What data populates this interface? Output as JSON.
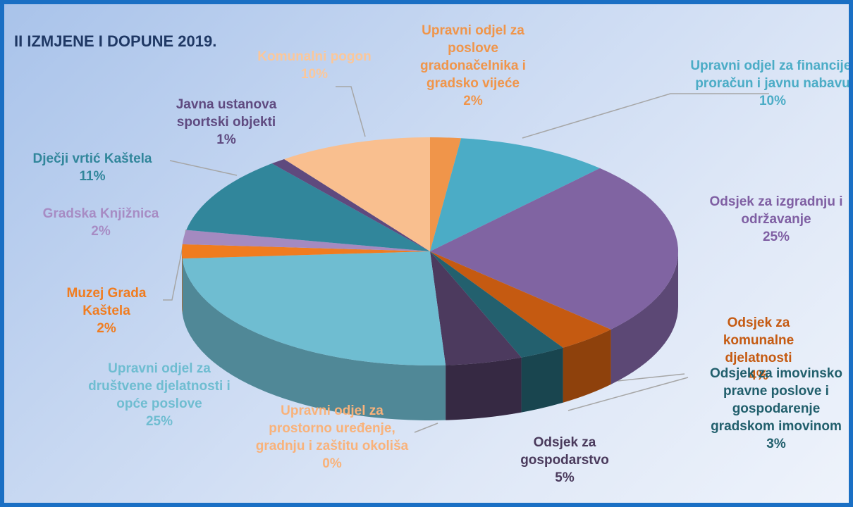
{
  "chart_data": {
    "type": "pie",
    "title": "II IZMJENE I DOPUNE 2019.",
    "categories": [
      "Upravni odjel za poslove gradonačelnika i gradsko vijeće",
      "Upravni odjel za financije, proračun i javnu nabavu",
      "Odsjek za izgradnju i održavanje",
      "Odsjek za komunalne djelatnosti",
      "Odsjek za imovinsko pravne poslove i gospodarenje gradskom imovinom",
      "Odsjek za gospodarstvo",
      "Upravni odjel za prostorno uređenje, gradnju i zaštitu okoliša",
      "Upravni odjel za društvene djelatnosti i opće poslove",
      "Muzej Grada Kaštela",
      "Gradska Knjižnica",
      "Dječji vrtić Kaštela",
      "Javna ustanova sportski objekti",
      "Komunalni pogon"
    ],
    "values": [
      2,
      10,
      25,
      4,
      3,
      5,
      0,
      25,
      2,
      2,
      11,
      1,
      10
    ],
    "value_labels": [
      "2%",
      "10%",
      "25%",
      "4%",
      "3%",
      "5%",
      "0%",
      "25%",
      "2%",
      "2%",
      "11%",
      "1%",
      "10%"
    ],
    "colors": [
      "#f0954a",
      "#4bacc6",
      "#8064a2",
      "#c55a11",
      "#23606e",
      "#4c3a5e",
      "#f9b98a",
      "#6fbdd1",
      "#f07c1f",
      "#a48ac0",
      "#31869b",
      "#5f4a7e",
      "#f9bf8f"
    ]
  }
}
